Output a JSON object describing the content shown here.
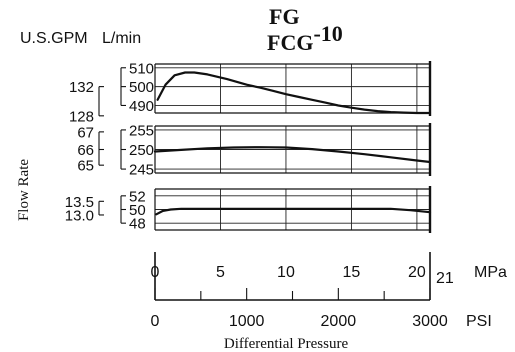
{
  "header": {
    "left_units_label": "U.S.GPM",
    "right_units_label": "L/min",
    "title_line1": "FG",
    "title_line2": "FCG",
    "title_suffix": "-10"
  },
  "chart_data": {
    "type": "line",
    "ylabel": "Flow Rate",
    "xlabel": "Differential Pressure",
    "x_axis_primary": {
      "unit": "MPa",
      "range": [
        0,
        21
      ],
      "ticks": [
        "0",
        "5",
        "10",
        "15",
        "20"
      ],
      "end_label": "21"
    },
    "x_axis_secondary": {
      "unit": "PSI",
      "range": [
        0,
        3000
      ],
      "ticks": [
        "0",
        "1000",
        "2000",
        "3000"
      ]
    },
    "grid": true,
    "panels": [
      {
        "ylim_lmin": [
          486,
          512
        ],
        "ticks_lmin": [
          "510",
          "500",
          "490"
        ],
        "ticks_gpm": [
          {
            "label": "132",
            "lmin": 500
          },
          {
            "label": "128",
            "lmin": 484.5
          }
        ],
        "series": [
          {
            "x": [
              0.2,
              0.8,
              1.5,
              2.3,
              3.0,
              4.0,
              5.5,
              7,
              8,
              9,
              10,
              11,
              12,
              13,
              14,
              15,
              16,
              17,
              18,
              19,
              20,
              21
            ],
            "y": [
              493,
              501,
              506,
              507.5,
              507.5,
              506.5,
              504,
              501,
              499.5,
              497.8,
              496,
              494.5,
              493,
              491.5,
              490,
              488.8,
              487.8,
              487,
              486.5,
              486.2,
              486,
              486
            ]
          }
        ]
      },
      {
        "ylim_lmin": [
          244,
          256
        ],
        "ticks_lmin": [
          "255",
          "250",
          "245"
        ],
        "ticks_gpm": [
          {
            "label": "67",
            "lmin": 254.5
          },
          {
            "label": "66",
            "lmin": 250
          },
          {
            "label": "65",
            "lmin": 246
          }
        ],
        "series": [
          {
            "x": [
              0,
              2,
              4,
              6,
              8,
              10,
              12,
              14,
              16,
              18,
              20,
              21
            ],
            "y": [
              249.5,
              249.9,
              250.3,
              250.5,
              250.6,
              250.5,
              250.1,
              249.5,
              248.8,
              248,
              247.2,
              246.8
            ]
          }
        ]
      },
      {
        "ylim_lmin": [
          47,
          53
        ],
        "ticks_lmin": [
          "52",
          "50",
          "48"
        ],
        "ticks_gpm": [
          {
            "label": "13.5",
            "lmin": 51.2
          },
          {
            "label": "13.0",
            "lmin": 49.2
          }
        ],
        "series": [
          {
            "x": [
              0.1,
              0.6,
              1.2,
              2,
              4,
              10,
              15,
              18,
              19.5,
              21
            ],
            "y": [
              49.3,
              49.8,
              50,
              50.1,
              50.1,
              50.1,
              50.1,
              50.1,
              49.9,
              49.6
            ]
          }
        ]
      }
    ]
  }
}
